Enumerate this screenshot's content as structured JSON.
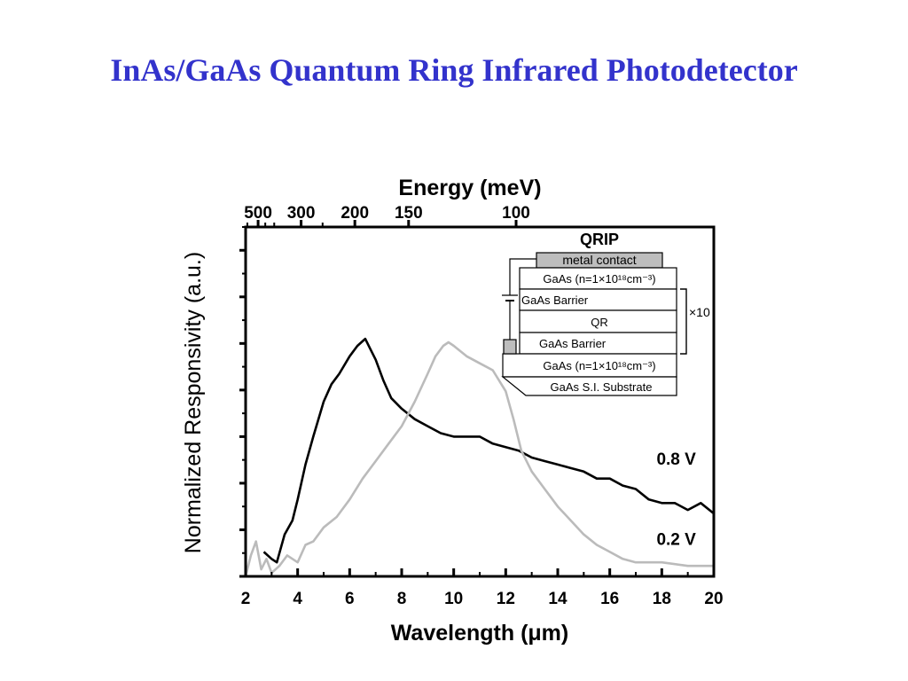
{
  "slide": {
    "title": "InAs/GaAs Quantum Ring Infrared Photodetector"
  },
  "chart_data": {
    "type": "line",
    "title": "",
    "xlabel": "Wavelength (μm)",
    "ylabel": "Normalized Responsivity (a.u.)",
    "top_axis_label": "Energy (meV)",
    "xlim": [
      2,
      20
    ],
    "ylim": [
      0,
      1
    ],
    "x_ticks": [
      "2",
      "4",
      "6",
      "8",
      "10",
      "12",
      "14",
      "16",
      "18",
      "20"
    ],
    "top_ticks": [
      {
        "label": "500",
        "energy": 500
      },
      {
        "label": "300",
        "energy": 300
      },
      {
        "label": "200",
        "energy": 200
      },
      {
        "label": "150",
        "energy": 150
      },
      {
        "label": "100",
        "energy": 100
      }
    ],
    "series": [
      {
        "name": "0.8 V",
        "color": "#000000",
        "x": [
          2.7,
          3.0,
          3.2,
          3.5,
          3.8,
          4.0,
          4.3,
          4.6,
          5.0,
          5.3,
          5.6,
          6.0,
          6.3,
          6.6,
          6.8,
          7.0,
          7.3,
          7.6,
          8.0,
          8.5,
          9.0,
          9.5,
          10.0,
          10.5,
          11.0,
          11.5,
          12.0,
          12.5,
          13.0,
          13.5,
          14.0,
          14.5,
          15.0,
          15.5,
          16.0,
          16.5,
          17.0,
          17.5,
          18.0,
          18.5,
          19.0,
          19.5,
          20.0
        ],
        "values": [
          0.07,
          0.05,
          0.04,
          0.12,
          0.16,
          0.22,
          0.32,
          0.4,
          0.5,
          0.55,
          0.58,
          0.63,
          0.66,
          0.68,
          0.65,
          0.62,
          0.56,
          0.51,
          0.48,
          0.45,
          0.43,
          0.41,
          0.4,
          0.4,
          0.4,
          0.38,
          0.37,
          0.36,
          0.34,
          0.33,
          0.32,
          0.31,
          0.3,
          0.28,
          0.28,
          0.26,
          0.25,
          0.22,
          0.21,
          0.21,
          0.19,
          0.21,
          0.18
        ]
      },
      {
        "name": "0.2 V",
        "color": "#bbbbbb",
        "x": [
          2.0,
          2.2,
          2.4,
          2.6,
          2.8,
          3.0,
          3.3,
          3.6,
          4.0,
          4.3,
          4.6,
          5.0,
          5.5,
          6.0,
          6.5,
          7.0,
          7.5,
          8.0,
          8.5,
          9.0,
          9.3,
          9.6,
          9.8,
          10.0,
          10.5,
          11.0,
          11.5,
          12.0,
          12.3,
          12.6,
          13.0,
          13.5,
          14.0,
          14.5,
          15.0,
          15.5,
          16.0,
          16.5,
          17.0,
          17.5,
          18.0,
          19.0,
          20.0
        ],
        "values": [
          0.0,
          0.06,
          0.1,
          0.02,
          0.05,
          0.01,
          0.03,
          0.06,
          0.04,
          0.09,
          0.1,
          0.14,
          0.17,
          0.22,
          0.28,
          0.33,
          0.38,
          0.43,
          0.5,
          0.58,
          0.63,
          0.66,
          0.67,
          0.66,
          0.63,
          0.61,
          0.59,
          0.53,
          0.45,
          0.36,
          0.3,
          0.25,
          0.2,
          0.16,
          0.12,
          0.09,
          0.07,
          0.05,
          0.04,
          0.04,
          0.04,
          0.03,
          0.03
        ]
      }
    ],
    "annotations": [
      {
        "text": "0.8 V",
        "x": 17.8,
        "y": 0.32
      },
      {
        "text": "0.2 V",
        "x": 17.8,
        "y": 0.09
      }
    ],
    "inset": {
      "title": "QRIP",
      "layers": {
        "metal": "metal contact",
        "gaas_top": "GaAs (n=1×10¹⁸cm⁻³)",
        "barrier_1": "GaAs Barrier",
        "qr": "QR",
        "barrier_2": "GaAs Barrier",
        "gaas_bottom": "GaAs (n=1×10¹⁸cm⁻³)",
        "substrate": "GaAs S.I. Substrate"
      },
      "repeat": "×10"
    },
    "grid": false,
    "legend": "inline-labels"
  }
}
